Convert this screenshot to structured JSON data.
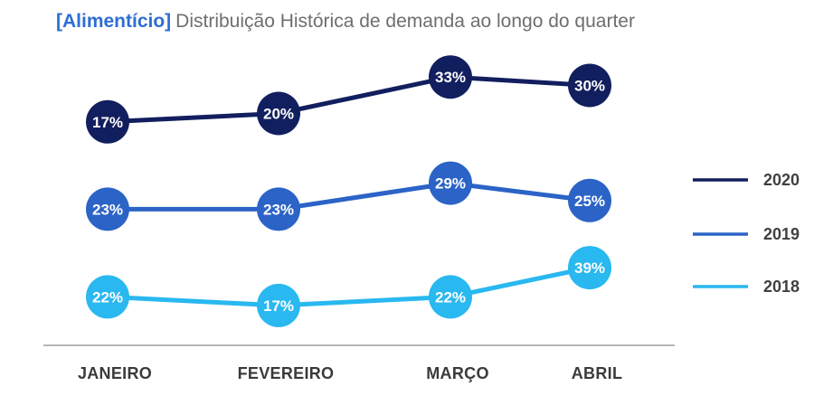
{
  "title": {
    "prefix": "[Alimentício]",
    "text": "Distribuição Histórica de demanda ao longo do quarter"
  },
  "colors": {
    "title_prefix": "#2d6ed4",
    "title_text": "#6e6e6e",
    "axis_line": "#b5b5b5",
    "category_label": "#3a3a3a",
    "legend_label": "#404040",
    "value_label": "#ffffff"
  },
  "chart_data": {
    "type": "line",
    "title": "[Alimentício] Distribuição Histórica de demanda ao longo do quarter",
    "categories": [
      "JANEIRO",
      "FEVEREIRO",
      "MARÇO",
      "ABRIL"
    ],
    "series": [
      {
        "name": "2020",
        "color": "#121f5e",
        "values": [
          17,
          20,
          33,
          30
        ]
      },
      {
        "name": "2019",
        "color": "#2b63c7",
        "values": [
          23,
          23,
          29,
          25
        ]
      },
      {
        "name": "2018",
        "color": "#29b8f0",
        "values": [
          22,
          17,
          22,
          39
        ]
      }
    ],
    "value_suffix": "%",
    "data_labels": "on",
    "grid": "off",
    "x_axis_line": "on",
    "legend_position": "right"
  }
}
